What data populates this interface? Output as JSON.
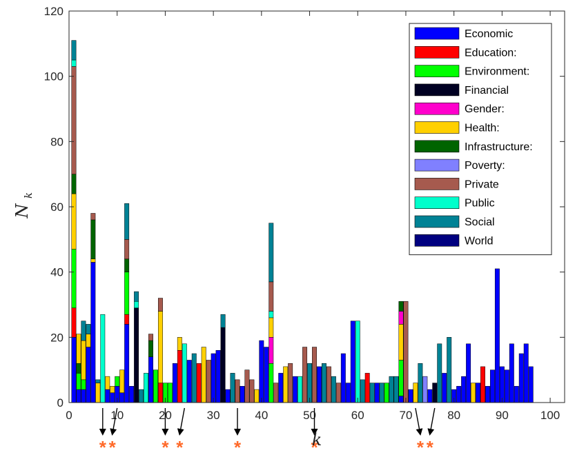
{
  "chart_data": {
    "type": "bar",
    "stacked": true,
    "xlim": [
      0,
      103
    ],
    "ylim": [
      0,
      120
    ],
    "xticks": [
      0,
      10,
      20,
      30,
      40,
      50,
      60,
      70,
      80,
      90,
      100
    ],
    "yticks": [
      0,
      20,
      40,
      60,
      80,
      100,
      120
    ],
    "xlabel": "k",
    "ylabel_main": "N",
    "ylabel_sub": "k",
    "grid": false,
    "legend_position": "top-right",
    "series": [
      {
        "name": "Economic",
        "color": "#0000ff"
      },
      {
        "name": "Education:",
        "color": "#ff0000"
      },
      {
        "name": "Environment:",
        "color": "#00ff00"
      },
      {
        "name": "Financial",
        "color": "#000022"
      },
      {
        "name": "Gender:",
        "color": "#ff00cc"
      },
      {
        "name": "Health:",
        "color": "#ffd000"
      },
      {
        "name": "Infrastructure:",
        "color": "#006400"
      },
      {
        "name": "Poverty:",
        "color": "#8080ff"
      },
      {
        "name": "Private",
        "color": "#a65a4e"
      },
      {
        "name": "Public",
        "color": "#00ffcc"
      },
      {
        "name": "Social",
        "color": "#008295"
      },
      {
        "name": "World",
        "color": "#000080"
      }
    ],
    "bars": [
      {
        "k": 1,
        "stack": [
          [
            "Economic",
            20
          ],
          [
            "Education:",
            9
          ],
          [
            "Environment:",
            18
          ],
          [
            "Health:",
            17
          ],
          [
            "Infrastructure:",
            6
          ],
          [
            "Private",
            33
          ],
          [
            "Public",
            2
          ],
          [
            "Social",
            6
          ]
        ]
      },
      {
        "k": 2,
        "stack": [
          [
            "Economic",
            4
          ],
          [
            "Environment:",
            5
          ],
          [
            "Infrastructure:",
            3
          ],
          [
            "Health:",
            9
          ]
        ]
      },
      {
        "k": 3,
        "stack": [
          [
            "Economic",
            4
          ],
          [
            "Environment:",
            3
          ],
          [
            "Health:",
            12
          ],
          [
            "Social",
            6
          ]
        ]
      },
      {
        "k": 4,
        "stack": [
          [
            "Economic",
            17
          ],
          [
            "Health:",
            4
          ],
          [
            "Social",
            3
          ]
        ]
      },
      {
        "k": 5,
        "stack": [
          [
            "Economic",
            43
          ],
          [
            "Health:",
            1
          ],
          [
            "Infrastructure:",
            12
          ],
          [
            "Private",
            2
          ]
        ]
      },
      {
        "k": 6,
        "stack": [
          [
            "Health:",
            6
          ],
          [
            "Social",
            1
          ]
        ]
      },
      {
        "k": 7,
        "stack": [
          [
            "Public",
            27
          ]
        ]
      },
      {
        "k": 8,
        "stack": [
          [
            "Economic",
            4
          ],
          [
            "Health:",
            4
          ]
        ]
      },
      {
        "k": 9,
        "stack": [
          [
            "Economic",
            3
          ],
          [
            "Health:",
            2
          ]
        ]
      },
      {
        "k": 10,
        "stack": [
          [
            "Economic",
            5
          ],
          [
            "Environment:",
            3
          ]
        ]
      },
      {
        "k": 11,
        "stack": [
          [
            "Economic",
            3
          ],
          [
            "Health:",
            7
          ]
        ]
      },
      {
        "k": 12,
        "stack": [
          [
            "Economic",
            24
          ],
          [
            "Education:",
            3
          ],
          [
            "Environment:",
            13
          ],
          [
            "Infrastructure:",
            4
          ],
          [
            "Private",
            6
          ],
          [
            "Social",
            11
          ]
        ]
      },
      {
        "k": 13,
        "stack": [
          [
            "Economic",
            5
          ]
        ]
      },
      {
        "k": 14,
        "stack": [
          [
            "Financial",
            29
          ],
          [
            "Public",
            2
          ],
          [
            "Social",
            3
          ]
        ]
      },
      {
        "k": 15,
        "stack": [
          [
            "Social",
            4
          ]
        ]
      },
      {
        "k": 16,
        "stack": [
          [
            "Public",
            9
          ]
        ]
      },
      {
        "k": 17,
        "stack": [
          [
            "Economic",
            14
          ],
          [
            "Infrastructure:",
            5
          ],
          [
            "Private",
            2
          ]
        ]
      },
      {
        "k": 18,
        "stack": [
          [
            "Environment:",
            10
          ]
        ]
      },
      {
        "k": 19,
        "stack": [
          [
            "Education:",
            6
          ],
          [
            "Health:",
            22
          ],
          [
            "Private",
            4
          ]
        ]
      },
      {
        "k": 20,
        "stack": [
          [
            "Environment:",
            6
          ]
        ]
      },
      {
        "k": 21,
        "stack": [
          [
            "Environment:",
            6
          ]
        ]
      },
      {
        "k": 22,
        "stack": [
          [
            "Economic",
            12
          ]
        ]
      },
      {
        "k": 23,
        "stack": [
          [
            "Education:",
            16
          ],
          [
            "Health:",
            4
          ]
        ]
      },
      {
        "k": 24,
        "stack": [
          [
            "Public",
            18
          ]
        ]
      },
      {
        "k": 25,
        "stack": [
          [
            "Economic",
            13
          ]
        ]
      },
      {
        "k": 26,
        "stack": [
          [
            "Social",
            15
          ]
        ]
      },
      {
        "k": 27,
        "stack": [
          [
            "Education:",
            12
          ]
        ]
      },
      {
        "k": 28,
        "stack": [
          [
            "Health:",
            17
          ]
        ]
      },
      {
        "k": 29,
        "stack": [
          [
            "Private",
            13
          ]
        ]
      },
      {
        "k": 30,
        "stack": [
          [
            "Economic",
            15
          ]
        ]
      },
      {
        "k": 31,
        "stack": [
          [
            "Economic",
            16
          ]
        ]
      },
      {
        "k": 32,
        "stack": [
          [
            "Financial",
            23
          ],
          [
            "Social",
            4
          ]
        ]
      },
      {
        "k": 33,
        "stack": [
          [
            "Economic",
            4
          ]
        ]
      },
      {
        "k": 34,
        "stack": [
          [
            "Social",
            9
          ]
        ]
      },
      {
        "k": 35,
        "stack": [
          [
            "Private",
            7
          ]
        ]
      },
      {
        "k": 36,
        "stack": [
          [
            "Economic",
            5
          ]
        ]
      },
      {
        "k": 37,
        "stack": [
          [
            "Private",
            10
          ]
        ]
      },
      {
        "k": 38,
        "stack": [
          [
            "Private",
            7
          ]
        ]
      },
      {
        "k": 39,
        "stack": [
          [
            "Health:",
            4
          ]
        ]
      },
      {
        "k": 40,
        "stack": [
          [
            "Economic",
            19
          ]
        ]
      },
      {
        "k": 41,
        "stack": [
          [
            "Economic",
            17
          ]
        ]
      },
      {
        "k": 42,
        "stack": [
          [
            "Environment:",
            12
          ],
          [
            "Gender:",
            8
          ],
          [
            "Health:",
            6
          ],
          [
            "Public",
            2
          ],
          [
            "Private",
            9
          ],
          [
            "Social",
            18
          ]
        ]
      },
      {
        "k": 43,
        "stack": [
          [
            "Private",
            6
          ]
        ]
      },
      {
        "k": 44,
        "stack": [
          [
            "Economic",
            9
          ]
        ]
      },
      {
        "k": 45,
        "stack": [
          [
            "Health:",
            11
          ]
        ]
      },
      {
        "k": 46,
        "stack": [
          [
            "Private",
            12
          ]
        ]
      },
      {
        "k": 47,
        "stack": [
          [
            "Economic",
            8
          ]
        ]
      },
      {
        "k": 48,
        "stack": [
          [
            "Public",
            8
          ]
        ]
      },
      {
        "k": 49,
        "stack": [
          [
            "Private",
            17
          ]
        ]
      },
      {
        "k": 50,
        "stack": [
          [
            "Social",
            12
          ]
        ]
      },
      {
        "k": 51,
        "stack": [
          [
            "Private",
            17
          ]
        ]
      },
      {
        "k": 52,
        "stack": [
          [
            "Economic",
            11
          ]
        ]
      },
      {
        "k": 53,
        "stack": [
          [
            "Social",
            12
          ]
        ]
      },
      {
        "k": 54,
        "stack": [
          [
            "Private",
            11
          ]
        ]
      },
      {
        "k": 55,
        "stack": [
          [
            "Social",
            8
          ]
        ]
      },
      {
        "k": 56,
        "stack": [
          [
            "Private",
            6
          ]
        ]
      },
      {
        "k": 57,
        "stack": [
          [
            "Economic",
            15
          ]
        ]
      },
      {
        "k": 58,
        "stack": [
          [
            "Economic",
            6
          ]
        ]
      },
      {
        "k": 59,
        "stack": [
          [
            "Economic",
            25
          ]
        ]
      },
      {
        "k": 60,
        "stack": [
          [
            "Public",
            25
          ]
        ]
      },
      {
        "k": 61,
        "stack": [
          [
            "Social",
            7
          ]
        ]
      },
      {
        "k": 62,
        "stack": [
          [
            "Education:",
            9
          ]
        ]
      },
      {
        "k": 63,
        "stack": [
          [
            "Social",
            6
          ]
        ]
      },
      {
        "k": 64,
        "stack": [
          [
            "Economic",
            6
          ]
        ]
      },
      {
        "k": 65,
        "stack": [
          [
            "Social",
            6
          ]
        ]
      },
      {
        "k": 66,
        "stack": [
          [
            "Environment:",
            6
          ]
        ]
      },
      {
        "k": 67,
        "stack": [
          [
            "Social",
            8
          ]
        ]
      },
      {
        "k": 68,
        "stack": [
          [
            "Social",
            8
          ]
        ]
      },
      {
        "k": 69,
        "stack": [
          [
            "Economic",
            2
          ],
          [
            "Environment:",
            11
          ],
          [
            "Health:",
            11
          ],
          [
            "Gender:",
            4
          ],
          [
            "Infrastructure:",
            3
          ]
        ]
      },
      {
        "k": 70,
        "stack": [
          [
            "Private",
            31
          ]
        ]
      },
      {
        "k": 71,
        "stack": [
          [
            "Economic",
            4
          ]
        ]
      },
      {
        "k": 72,
        "stack": [
          [
            "Health:",
            6
          ]
        ]
      },
      {
        "k": 73,
        "stack": [
          [
            "Social",
            12
          ]
        ]
      },
      {
        "k": 74,
        "stack": [
          [
            "Poverty:",
            8
          ]
        ]
      },
      {
        "k": 75,
        "stack": [
          [
            "Economic",
            4
          ]
        ]
      },
      {
        "k": 76,
        "stack": [
          [
            "Financial",
            6
          ]
        ]
      },
      {
        "k": 77,
        "stack": [
          [
            "Social",
            18
          ]
        ]
      },
      {
        "k": 78,
        "stack": [
          [
            "Economic",
            9
          ]
        ]
      },
      {
        "k": 79,
        "stack": [
          [
            "Social",
            20
          ]
        ]
      },
      {
        "k": 80,
        "stack": [
          [
            "Economic",
            4
          ]
        ]
      },
      {
        "k": 81,
        "stack": [
          [
            "Economic",
            5
          ]
        ]
      },
      {
        "k": 82,
        "stack": [
          [
            "Economic",
            8
          ]
        ]
      },
      {
        "k": 83,
        "stack": [
          [
            "Economic",
            18
          ]
        ]
      },
      {
        "k": 84,
        "stack": [
          [
            "Health:",
            6
          ]
        ]
      },
      {
        "k": 85,
        "stack": [
          [
            "Economic",
            6
          ]
        ]
      },
      {
        "k": 86,
        "stack": [
          [
            "Education:",
            11
          ]
        ]
      },
      {
        "k": 87,
        "stack": [
          [
            "Economic",
            5
          ]
        ]
      },
      {
        "k": 88,
        "stack": [
          [
            "Economic",
            10
          ]
        ]
      },
      {
        "k": 89,
        "stack": [
          [
            "Economic",
            41
          ]
        ]
      },
      {
        "k": 90,
        "stack": [
          [
            "Economic",
            11
          ]
        ]
      },
      {
        "k": 91,
        "stack": [
          [
            "Economic",
            10
          ]
        ]
      },
      {
        "k": 92,
        "stack": [
          [
            "Economic",
            18
          ]
        ]
      },
      {
        "k": 93,
        "stack": [
          [
            "Economic",
            5
          ]
        ]
      },
      {
        "k": 94,
        "stack": [
          [
            "Economic",
            15
          ]
        ]
      },
      {
        "k": 95,
        "stack": [
          [
            "Economic",
            18
          ]
        ]
      },
      {
        "k": 96,
        "stack": [
          [
            "Economic",
            11
          ]
        ]
      }
    ],
    "annotations": {
      "marker": "*",
      "marker_color": "#ff6a2a",
      "arrow_color": "#000000",
      "points": [
        {
          "x": 7,
          "arrow_from": 7
        },
        {
          "x": 9,
          "arrow_from": 10
        },
        {
          "x": 20,
          "arrow_from": 20
        },
        {
          "x": 23,
          "arrow_from": 24
        },
        {
          "x": 35,
          "arrow_from": 35
        },
        {
          "x": 51,
          "arrow_from": 51
        },
        {
          "x": 73,
          "arrow_from": 72
        },
        {
          "x": 75,
          "arrow_from": 76
        }
      ]
    }
  }
}
